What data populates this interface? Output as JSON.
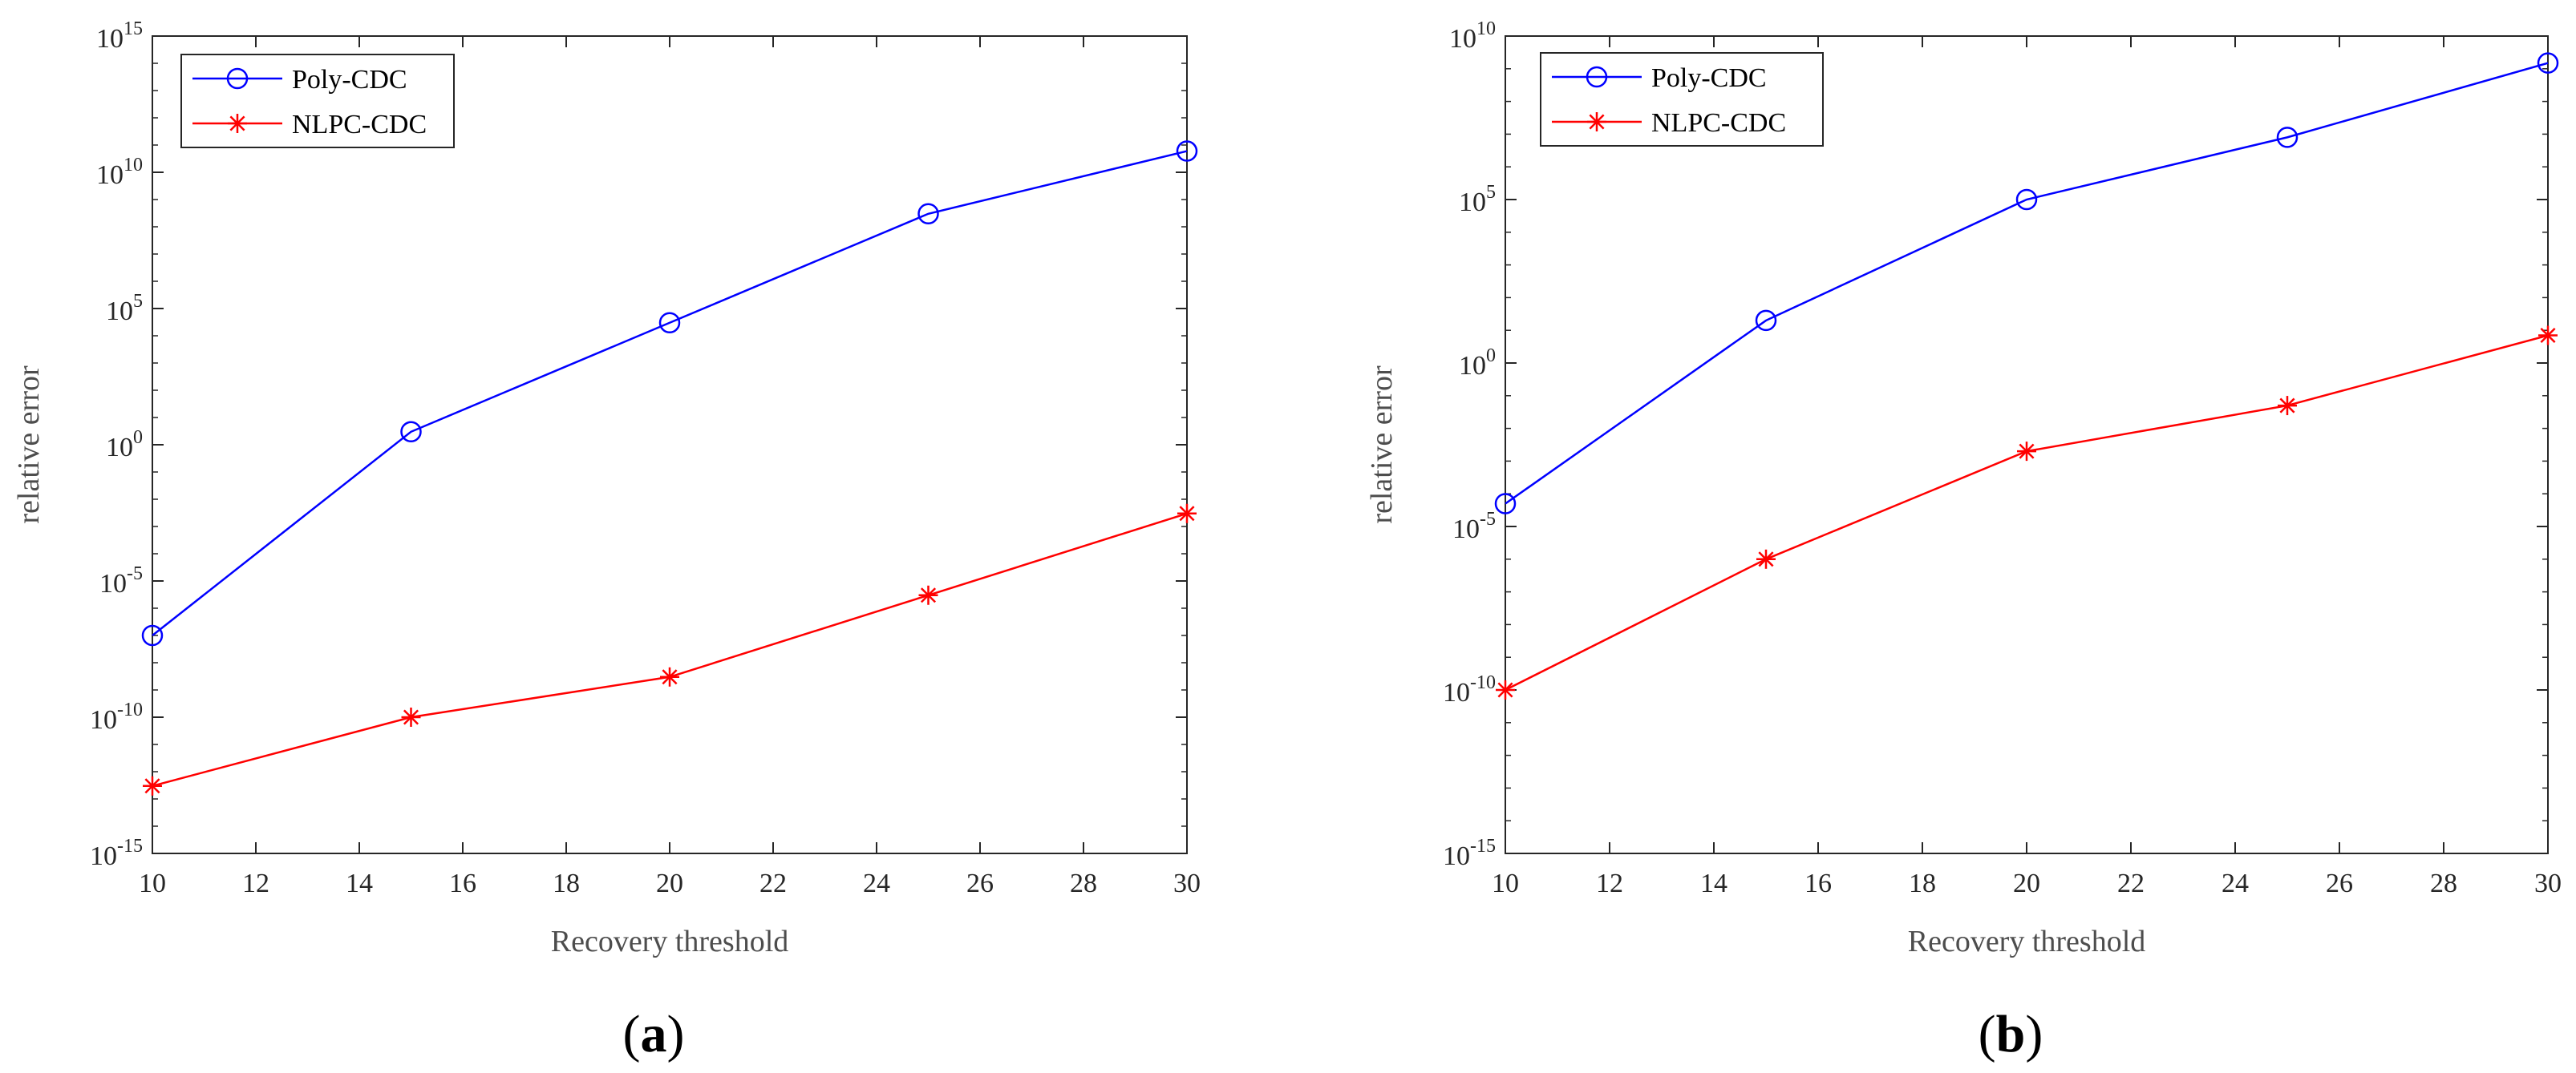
{
  "chart_data": [
    {
      "type": "line",
      "panel_label": "a",
      "xlabel": "Recovery threshold",
      "ylabel": "relative error",
      "yscale": "log",
      "xlim": [
        10,
        30
      ],
      "ylim": [
        1e-15,
        1000000000000000.0
      ],
      "xticks": [
        10,
        12,
        14,
        16,
        18,
        20,
        22,
        24,
        26,
        28,
        30
      ],
      "yticks": [
        {
          "value": 1e-15,
          "base": "10",
          "exp": "-15"
        },
        {
          "value": 1e-10,
          "base": "10",
          "exp": "-10"
        },
        {
          "value": 1e-05,
          "base": "10",
          "exp": "-5"
        },
        {
          "value": 1,
          "base": "10",
          "exp": "0"
        },
        {
          "value": 100000.0,
          "base": "10",
          "exp": "5"
        },
        {
          "value": 10000000000.0,
          "base": "10",
          "exp": "10"
        },
        {
          "value": 1000000000000000.0,
          "base": "10",
          "exp": "15"
        }
      ],
      "legend_position": "top-left",
      "series": [
        {
          "name": "Poly-CDC",
          "color": "#0000ff",
          "marker": "circle",
          "x": [
            10,
            15,
            20,
            25,
            30
          ],
          "y": [
            1e-07,
            3,
            30000.0,
            300000000.0,
            60000000000.0
          ]
        },
        {
          "name": "NLPC-CDC",
          "color": "#ff0000",
          "marker": "star",
          "x": [
            10,
            15,
            20,
            25,
            30
          ],
          "y": [
            3e-13,
            1e-10,
            3e-09,
            3e-06,
            0.003
          ]
        }
      ]
    },
    {
      "type": "line",
      "panel_label": "b",
      "xlabel": "Recovery threshold",
      "ylabel": "relative error",
      "yscale": "log",
      "xlim": [
        10,
        30
      ],
      "ylim": [
        1e-15,
        10000000000.0
      ],
      "xticks": [
        10,
        12,
        14,
        16,
        18,
        20,
        22,
        24,
        26,
        28,
        30
      ],
      "yticks": [
        {
          "value": 1e-15,
          "base": "10",
          "exp": "-15"
        },
        {
          "value": 1e-10,
          "base": "10",
          "exp": "-10"
        },
        {
          "value": 1e-05,
          "base": "10",
          "exp": "-5"
        },
        {
          "value": 1,
          "base": "10",
          "exp": "0"
        },
        {
          "value": 100000.0,
          "base": "10",
          "exp": "5"
        },
        {
          "value": 10000000000.0,
          "base": "10",
          "exp": "10"
        }
      ],
      "legend_position": "top-left",
      "series": [
        {
          "name": "Poly-CDC",
          "color": "#0000ff",
          "marker": "circle",
          "x": [
            10,
            15,
            20,
            25,
            30
          ],
          "y": [
            5e-05,
            20,
            100000.0,
            8000000.0,
            1500000000.0
          ]
        },
        {
          "name": "NLPC-CDC",
          "color": "#ff0000",
          "marker": "star",
          "x": [
            10,
            15,
            20,
            25,
            30
          ],
          "y": [
            1e-10,
            1e-06,
            0.002,
            0.05,
            7
          ]
        }
      ]
    }
  ]
}
